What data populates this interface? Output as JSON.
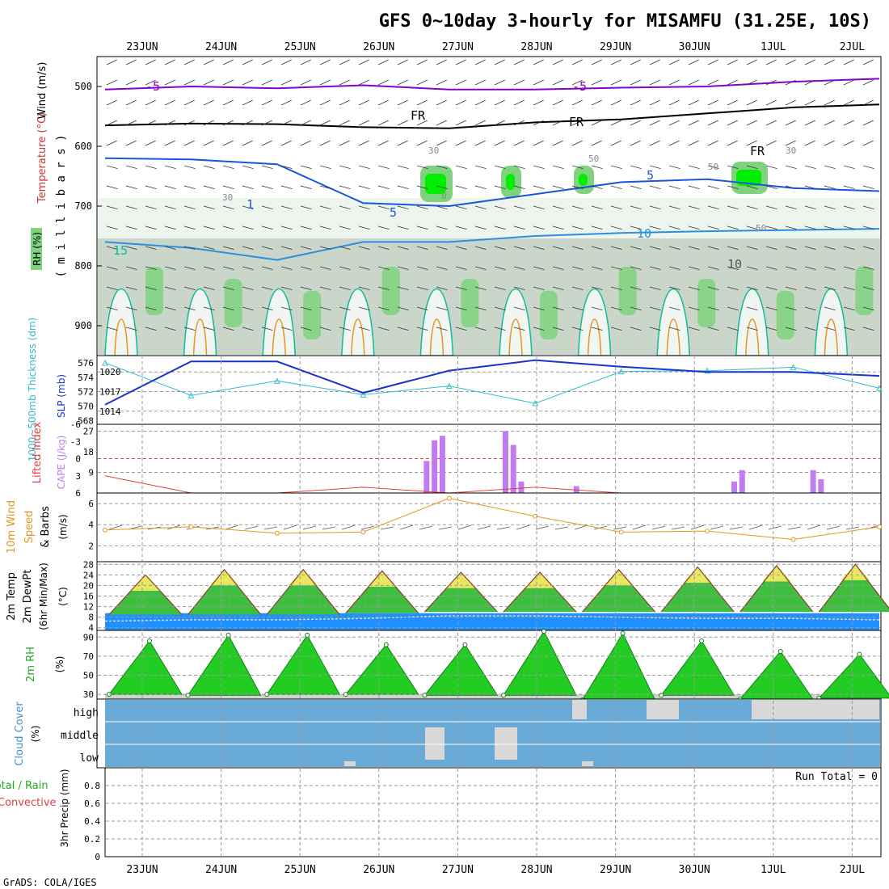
{
  "title": "GFS 0~10day 3-hourly for MISAMFU (31.25E, 10S)",
  "credit": "GrADS: COLA/IGES",
  "dates": [
    "23JUN",
    "24JUN",
    "25JUN",
    "26JUN",
    "27JUN",
    "28JUN",
    "29JUN",
    "30JUN",
    "1JUL",
    "2JUL"
  ],
  "colors": {
    "gridline": "#999999",
    "rh_light": "#eef4ee",
    "rh_mid": "#c9d6c9",
    "rh_green": "#7fd37f",
    "rh_bright": "#00ee00",
    "temp_purple": "#8800cc",
    "temp_black": "#000000",
    "temp_blue": "#1a55dd",
    "temp_lightblue": "#2a8fe0",
    "temp_teal": "#11bb99",
    "temp_orange": "#e69520",
    "temp_red": "#cc2255",
    "slp": "#1a33cc",
    "thickness": "#33bbcc",
    "cape": "#c07cf0",
    "lifted_index": "#e04040",
    "wind_speed": "#e69520",
    "temp2m_fill": "#1e90ff",
    "rh2m_green": "#22cc22",
    "cloud": "#6aaad6",
    "cloud_gap": "#d8d8d8"
  },
  "panels": {
    "upper": {
      "ylabel_wind": "Wind (m/s)",
      "ylabel_temp": "Temperature (°C)",
      "ylabel_rh": "RH (%)",
      "ylabel_axis": "( m i l l i b a r s )",
      "ticks": [
        "500",
        "600",
        "700",
        "800",
        "900"
      ],
      "contour_labels": [
        "-5",
        "-5",
        "FR",
        "FR",
        "FR",
        "5",
        "5",
        "1",
        "10",
        "15",
        "10",
        "30",
        "30",
        "50",
        "50",
        "30",
        "50",
        "0"
      ]
    },
    "slp": {
      "ylabel_thick": "1000~500mb Thickness (dm)",
      "ylabel_slp": "SLP (mb)",
      "ticks_left": [
        "576",
        "574",
        "572",
        "570",
        "568"
      ],
      "ticks_right": [
        "1020",
        "1017",
        "1014"
      ]
    },
    "cape": {
      "ylabel_li": "Lifted Index",
      "ylabel_cape": "CAPE (J/kg)",
      "ticks_left": [
        "-6",
        "-3",
        "0",
        "3",
        "6"
      ],
      "ticks_right": [
        "27",
        "18",
        "9"
      ]
    },
    "wind10": {
      "ylabel_a": "10m Wind",
      "ylabel_b": "Speed",
      "ylabel_c": "& Barbs",
      "unit": "(m/s)",
      "ticks": [
        "6",
        "4",
        "2"
      ]
    },
    "temp2m": {
      "ylabel_a": "2m Temp",
      "ylabel_b": "2m DewPt",
      "ylabel_c": "(6hr Min/Max)",
      "unit": "(°C)",
      "ticks": [
        "28",
        "24",
        "20",
        "16",
        "12",
        "8",
        "4"
      ]
    },
    "rh2m": {
      "ylabel": "2m RH",
      "unit": "(%)",
      "ticks": [
        "90",
        "70",
        "50",
        "30"
      ]
    },
    "cloud": {
      "ylabel": "Cloud Cover",
      "unit": "(%)",
      "levels": [
        "high",
        "middle",
        "low"
      ]
    },
    "precip": {
      "ylabel_a": "Total / Rain",
      "ylabel_b": "Convective",
      "ylabel_c": "3hr Precip (mm)",
      "run_total": "Run Total = 0",
      "ticks": [
        "0.8",
        "0.6",
        "0.4",
        "0.2",
        "0"
      ]
    }
  },
  "chart_data": [
    {
      "type": "heatmap",
      "panel": "upper-air cross-section",
      "ylabel": "(millibars)",
      "ylim": [
        950,
        450
      ],
      "xlabel": "",
      "categories": [
        "23JUN",
        "24JUN",
        "25JUN",
        "26JUN",
        "27JUN",
        "28JUN",
        "29JUN",
        "30JUN",
        "1JUL",
        "2JUL"
      ],
      "series": [
        {
          "name": "-5 °C isotherm (mb)",
          "values": [
            505,
            500,
            503,
            498,
            505,
            505,
            502,
            500,
            492,
            487
          ]
        },
        {
          "name": "FR (0 °C) isotherm (mb)",
          "values": [
            565,
            562,
            563,
            568,
            570,
            560,
            555,
            545,
            535,
            530
          ]
        },
        {
          "name": "5 °C isotherm (mb)",
          "values": [
            620,
            622,
            630,
            695,
            700,
            680,
            660,
            655,
            670,
            675
          ]
        },
        {
          "name": "10 °C isotherm (mb)",
          "values": [
            760,
            770,
            790,
            760,
            760,
            750,
            745,
            742,
            740,
            738
          ]
        }
      ]
    },
    {
      "type": "line",
      "panel": "SLP and 1000~500mb thickness",
      "x": [
        "23JUN",
        "24JUN",
        "25JUN",
        "26JUN",
        "27JUN",
        "28JUN",
        "29JUN",
        "30JUN",
        "1JUL",
        "2JUL"
      ],
      "series": [
        {
          "name": "SLP (mb)",
          "values": [
            1015.0,
            1021.6,
            1021.6,
            1016.8,
            1020.2,
            1021.8,
            1020.8,
            1020.0,
            1020.0,
            1019.4
          ]
        },
        {
          "name": "1000~500mb Thickness (dm)",
          "values": [
            576.0,
            571.5,
            573.5,
            571.6,
            572.8,
            570.4,
            574.8,
            574.9,
            575.4,
            572.5
          ]
        }
      ],
      "ylim_slp": [
        1012,
        1022
      ],
      "ylim_thick": [
        567.5,
        577
      ]
    },
    {
      "type": "bar",
      "panel": "CAPE and Lifted Index",
      "x": [
        "26.6",
        "26.7",
        "26.8",
        "27.6",
        "27.7",
        "27.8",
        "28.5",
        "30.5",
        "30.6",
        "1.5",
        "1.6"
      ],
      "series": [
        {
          "name": "CAPE (J/kg)",
          "values": [
            14,
            23,
            25,
            27,
            21,
            5,
            3,
            5,
            10,
            10,
            6
          ]
        }
      ],
      "ylim_cape": [
        0,
        27
      ],
      "ylim_li": [
        6,
        -6
      ]
    },
    {
      "type": "line",
      "panel": "10m wind speed",
      "x": [
        "23JUN",
        "24JUN",
        "25JUN",
        "26JUN",
        "27JUN",
        "28JUN",
        "29JUN",
        "30JUN",
        "1JUL",
        "2JUL"
      ],
      "series": [
        {
          "name": "10m Wind Speed (m/s)",
          "values": [
            3.5,
            3.8,
            3.2,
            3.3,
            6.5,
            4.8,
            3.3,
            3.4,
            2.6,
            3.8
          ]
        }
      ],
      "ylim": [
        0.5,
        7
      ]
    },
    {
      "type": "area",
      "panel": "2m temperature and dewpoint",
      "x": [
        "23JUN",
        "24JUN",
        "25JUN",
        "26JUN",
        "27JUN",
        "28JUN",
        "29JUN",
        "30JUN",
        "1JUL",
        "2JUL"
      ],
      "series": [
        {
          "name": "2m Temp daily max (°C)",
          "values": [
            24,
            26,
            26,
            25.5,
            25,
            25,
            26,
            27,
            27.5,
            28
          ]
        },
        {
          "name": "2m Temp daily min (°C)",
          "values": [
            9,
            9,
            9,
            9.5,
            10,
            10,
            10,
            10,
            10,
            10
          ]
        },
        {
          "name": "2m DewPt (°C)",
          "values": [
            6.5,
            7,
            7,
            7.5,
            8.5,
            8.5,
            8,
            7.5,
            7.5,
            7
          ]
        }
      ],
      "ylim": [
        3,
        29
      ]
    },
    {
      "type": "area",
      "panel": "2m relative humidity",
      "x": [
        "23JUN",
        "24JUN",
        "25JUN",
        "26JUN",
        "27JUN",
        "28JUN",
        "29JUN",
        "30JUN",
        "1JUL",
        "2JUL"
      ],
      "series": [
        {
          "name": "2m RH daily max (%)",
          "values": [
            86,
            92,
            92,
            82,
            82,
            96,
            94,
            86,
            75,
            72
          ]
        },
        {
          "name": "2m RH daily min (%)",
          "values": [
            30,
            29,
            30,
            30,
            29,
            29,
            24,
            29,
            25,
            26
          ]
        }
      ],
      "ylim": [
        25,
        97
      ]
    },
    {
      "type": "heatmap",
      "panel": "cloud cover",
      "levels": [
        "high",
        "middle",
        "low"
      ],
      "values": "mostly 100% at all levels; sporadic small gaps on 26~27JUN and 28~1JUL"
    },
    {
      "type": "bar",
      "panel": "3hr precipitation",
      "series": [
        {
          "name": "3hr Precip (mm)",
          "values": []
        }
      ],
      "ylim": [
        0,
        1
      ]
    }
  ]
}
